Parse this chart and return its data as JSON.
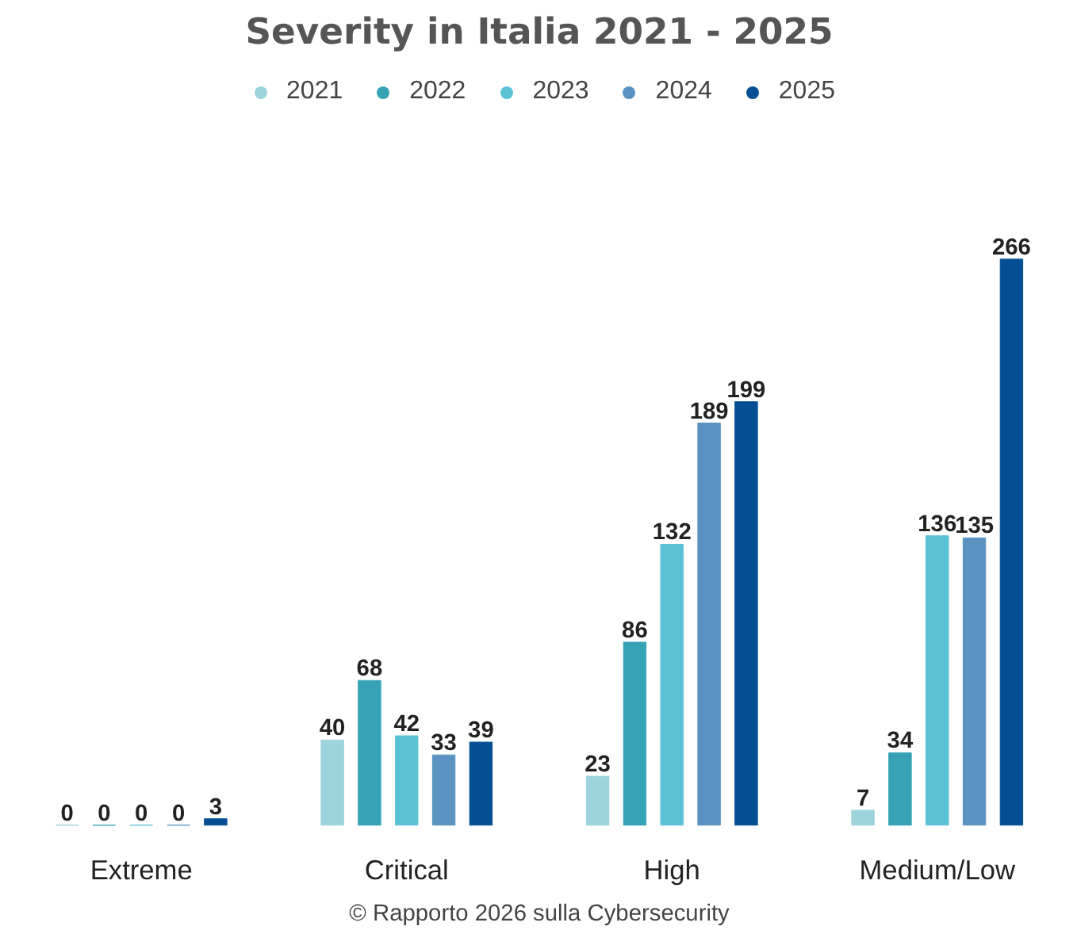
{
  "chart_data": {
    "type": "bar",
    "title": "Severity in Italia 2021 - 2025",
    "categories": [
      "Extreme",
      "Critical",
      "High",
      "Medium/Low"
    ],
    "series": [
      {
        "name": "2021",
        "color": "#9dd3dc",
        "values": [
          0,
          40,
          23,
          7
        ]
      },
      {
        "name": "2022",
        "color": "#35a3b5",
        "values": [
          0,
          68,
          86,
          34
        ]
      },
      {
        "name": "2023",
        "color": "#5bc2d6",
        "values": [
          0,
          42,
          132,
          136
        ]
      },
      {
        "name": "2024",
        "color": "#5a93c2",
        "values": [
          0,
          33,
          189,
          135
        ]
      },
      {
        "name": "2025",
        "color": "#044f93",
        "values": [
          3,
          39,
          199,
          266
        ]
      }
    ],
    "data_labels": true,
    "legend": "top",
    "grid": false,
    "annotations": [
      "© Rapporto 2026 sulla Cybersecurity"
    ]
  }
}
